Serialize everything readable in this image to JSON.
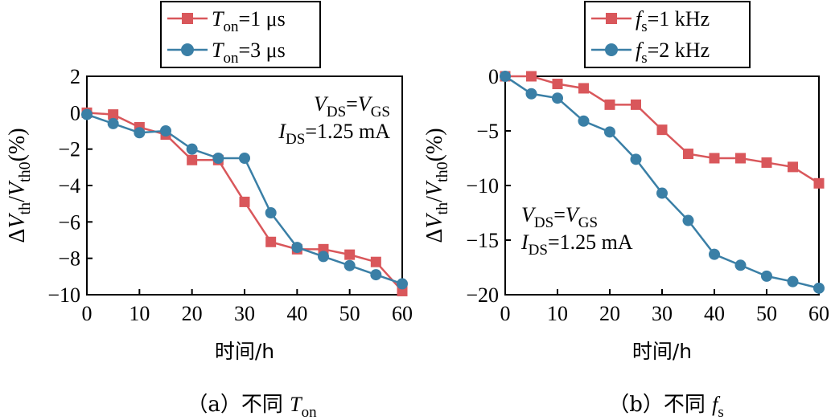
{
  "chart_data": [
    {
      "type": "line",
      "x": [
        0,
        5,
        10,
        15,
        20,
        25,
        30,
        35,
        40,
        45,
        50,
        55,
        60
      ],
      "xticks": [
        0,
        10,
        20,
        30,
        40,
        50,
        60
      ],
      "yticks": [
        2,
        0,
        -2,
        -4,
        -6,
        -8,
        -10
      ],
      "xlim": [
        0,
        60
      ],
      "ylim": [
        -10,
        2
      ],
      "xlabel": "时间/h",
      "ylabel": {
        "delta": "Δ",
        "v1": "V",
        "sub1": "th",
        "slash": "/",
        "v2": "V",
        "sub2": "th0",
        "unit": "(%)"
      },
      "series": [
        {
          "name_var": "T",
          "name_sub": "on",
          "name_rest": "=1 μs",
          "color": "#d9575b",
          "marker": "square",
          "values": [
            0,
            -0.1,
            -0.8,
            -1.2,
            -2.6,
            -2.6,
            -4.9,
            -7.1,
            -7.5,
            -7.5,
            -7.8,
            -8.2,
            -9.8
          ]
        },
        {
          "name_var": "T",
          "name_sub": "on",
          "name_rest": "=3 μs",
          "color": "#3a7fa6",
          "marker": "circle",
          "values": [
            -0.1,
            -0.6,
            -1.1,
            -1.0,
            -2.0,
            -2.5,
            -2.5,
            -5.5,
            -7.4,
            -7.9,
            -8.4,
            -8.9,
            -9.4
          ]
        }
      ],
      "annotation": {
        "line1": {
          "v": "V",
          "sub1": "DS",
          "eq": "=",
          "v2": "V",
          "sub2": "GS"
        },
        "line2": {
          "i": "I",
          "sub": "DS",
          "rest": "=1.25 mA"
        }
      },
      "legend_position": "top",
      "caption": {
        "prefix": "（a）不同 ",
        "var": "T",
        "sub": "on"
      }
    },
    {
      "type": "line",
      "x": [
        0,
        5,
        10,
        15,
        20,
        25,
        30,
        35,
        40,
        45,
        50,
        55,
        60
      ],
      "xticks": [
        0,
        10,
        20,
        30,
        40,
        50,
        60
      ],
      "yticks": [
        0,
        -5,
        -10,
        -15,
        -20
      ],
      "xlim": [
        0,
        60
      ],
      "ylim": [
        -20,
        0
      ],
      "xlabel": "时间/h",
      "ylabel": {
        "delta": "Δ",
        "v1": "V",
        "sub1": "th",
        "slash": "/",
        "v2": "V",
        "sub2": "th0",
        "unit": "(%)"
      },
      "series": [
        {
          "name_var": "f",
          "name_sub": "s",
          "name_rest": "=1 kHz",
          "color": "#d9575b",
          "marker": "square",
          "values": [
            0,
            0,
            -0.7,
            -1.1,
            -2.6,
            -2.6,
            -4.9,
            -7.1,
            -7.5,
            -7.5,
            -7.9,
            -8.3,
            -9.8
          ]
        },
        {
          "name_var": "f",
          "name_sub": "s",
          "name_rest": "=2 kHz",
          "color": "#3a7fa6",
          "marker": "circle",
          "values": [
            0,
            -1.6,
            -2.0,
            -4.1,
            -5.1,
            -7.6,
            -10.7,
            -13.2,
            -16.3,
            -17.3,
            -18.3,
            -18.8,
            -19.4
          ]
        }
      ],
      "annotation": {
        "line1": {
          "v": "V",
          "sub1": "DS",
          "eq": "=",
          "v2": "V",
          "sub2": "GS"
        },
        "line2": {
          "i": "I",
          "sub": "DS",
          "rest": "=1.25 mA"
        }
      },
      "legend_position": "top",
      "caption": {
        "prefix": "（b）不同 ",
        "var": "f",
        "sub": "s"
      }
    }
  ]
}
